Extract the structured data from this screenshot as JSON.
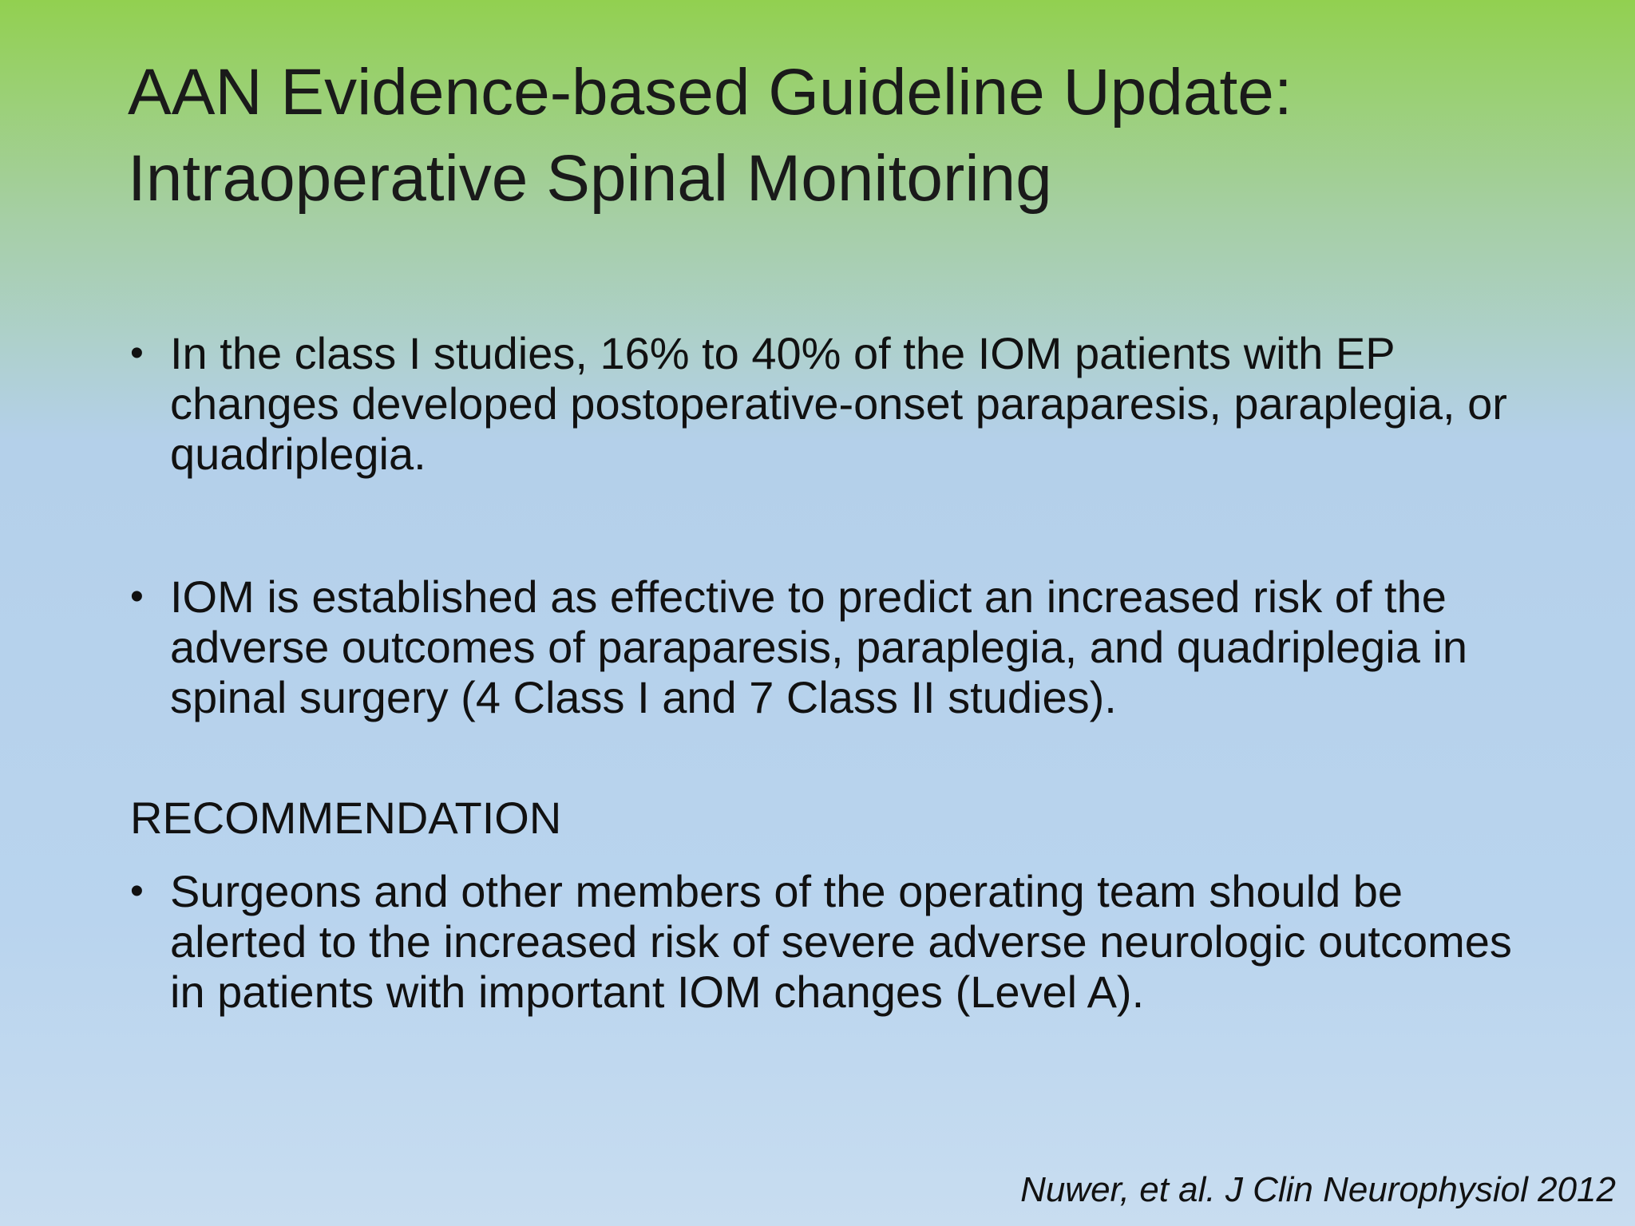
{
  "slide": {
    "title": "AAN Evidence-based Guideline Update: Intraoperative Spinal Monitoring",
    "bullets_top": [
      "In the class I studies, 16% to 40% of the IOM patients with EP changes developed postoperative-onset paraparesis, paraplegia, or quadriplegia.",
      "IOM is established as effective to predict an increased risk of the adverse outcomes of paraparesis, paraplegia, and quadriplegia in spinal surgery (4 Class I and 7 Class II studies)."
    ],
    "heading": "RECOMMENDATION",
    "bullets_bottom": [
      "Surgeons and other members of the operating team should be alerted to the increased risk of severe adverse neurologic outcomes in patients with important IOM changes (Level A)."
    ],
    "citation": "Nuwer, et al. J Clin Neurophysiol 2012"
  }
}
